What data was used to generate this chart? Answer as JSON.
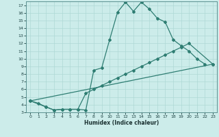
{
  "xlabel": "Humidex (Indice chaleur)",
  "xlim": [
    -0.5,
    23.5
  ],
  "ylim": [
    3,
    17.5
  ],
  "xticks": [
    0,
    1,
    2,
    3,
    4,
    5,
    6,
    7,
    8,
    9,
    10,
    11,
    12,
    13,
    14,
    15,
    16,
    17,
    18,
    19,
    20,
    21,
    22,
    23
  ],
  "yticks": [
    3,
    4,
    5,
    6,
    7,
    8,
    9,
    10,
    11,
    12,
    13,
    14,
    15,
    16,
    17
  ],
  "bg_color": "#ccecea",
  "line_color": "#2e7d72",
  "grid_color": "#aed8d5",
  "line1_x": [
    0,
    1,
    2,
    3,
    4,
    5,
    6,
    7,
    8,
    9,
    10,
    11,
    12,
    13,
    14,
    15,
    16,
    17,
    18,
    19,
    20,
    21,
    22
  ],
  "line1_y": [
    4.5,
    4.2,
    3.7,
    3.3,
    3.4,
    3.4,
    3.4,
    3.3,
    8.5,
    8.8,
    12.5,
    16.1,
    17.4,
    16.2,
    17.4,
    16.5,
    15.3,
    14.8,
    12.5,
    11.7,
    11.0,
    10.0,
    9.3
  ],
  "line2_x": [
    0,
    2,
    3,
    4,
    5,
    6,
    7,
    8,
    9,
    10,
    11,
    12,
    13,
    14,
    15,
    16,
    17,
    18,
    19,
    20,
    23
  ],
  "line2_y": [
    4.5,
    3.7,
    3.3,
    3.4,
    3.4,
    3.4,
    5.5,
    6.0,
    6.5,
    7.0,
    7.5,
    8.0,
    8.5,
    9.0,
    9.5,
    10.0,
    10.5,
    11.0,
    11.5,
    12.0,
    9.3
  ],
  "line3_x": [
    0,
    23
  ],
  "line3_y": [
    4.5,
    9.3
  ]
}
